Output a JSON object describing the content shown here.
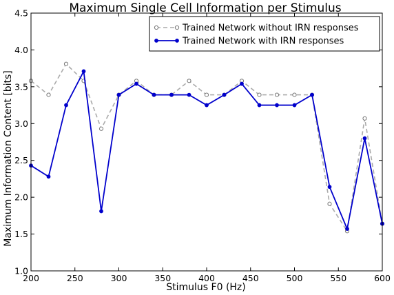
{
  "chart_data": {
    "type": "line",
    "title": "Maximum Single Cell Information per Stimulus",
    "xlabel": "Stimulus F0 (Hz)",
    "ylabel": "Maximum Information Content [bits]",
    "xlim": [
      200,
      600
    ],
    "ylim": [
      1.0,
      4.5
    ],
    "xticks": [
      200,
      250,
      300,
      350,
      400,
      450,
      500,
      550,
      600
    ],
    "xtick_labels": [
      "200",
      "250",
      "300",
      "350",
      "400",
      "450",
      "500",
      "550",
      "600"
    ],
    "yticks": [
      1.0,
      1.5,
      2.0,
      2.5,
      3.0,
      3.5,
      4.0,
      4.5
    ],
    "ytick_labels": [
      "1.0",
      "1.5",
      "2.0",
      "2.5",
      "3.0",
      "3.5",
      "4.0",
      "4.5"
    ],
    "grid": false,
    "legend_position": "top-right",
    "x": [
      200,
      220,
      240,
      260,
      280,
      300,
      320,
      340,
      360,
      380,
      400,
      420,
      440,
      460,
      480,
      500,
      520,
      540,
      560,
      580,
      600
    ],
    "series": [
      {
        "name": "Trained Network without IRN responses",
        "color": "#aaaaaa",
        "values": [
          3.58,
          3.39,
          3.81,
          3.58,
          2.93,
          3.39,
          3.58,
          3.39,
          3.39,
          3.58,
          3.39,
          3.39,
          3.58,
          3.39,
          3.39,
          3.39,
          3.39,
          1.91,
          1.54,
          3.07,
          1.64
        ]
      },
      {
        "name": "Trained Network with IRN responses",
        "color": "#0000cc",
        "values": [
          2.43,
          2.28,
          3.25,
          3.71,
          1.81,
          3.39,
          3.54,
          3.39,
          3.39,
          3.39,
          3.25,
          3.39,
          3.54,
          3.25,
          3.25,
          3.25,
          3.39,
          2.14,
          1.57,
          2.8,
          1.64
        ]
      }
    ]
  }
}
